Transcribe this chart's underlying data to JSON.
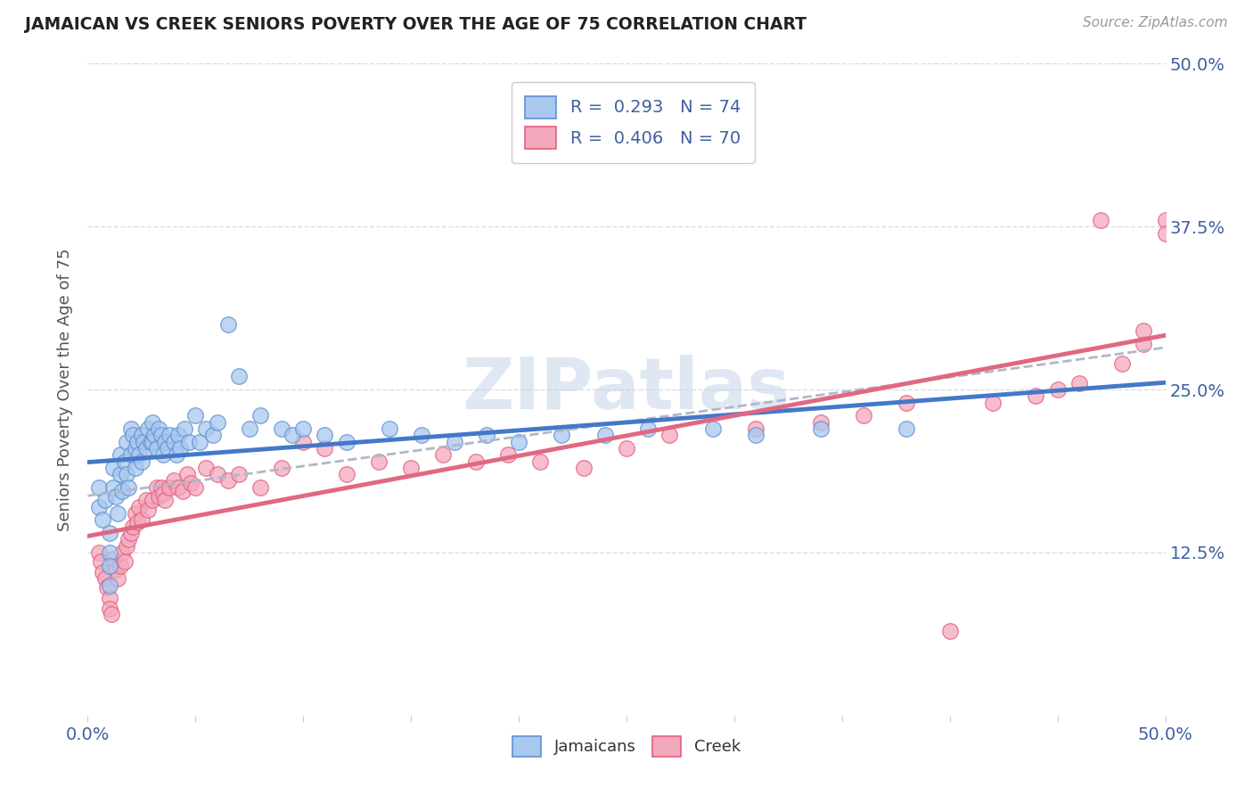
{
  "title": "JAMAICAN VS CREEK SENIORS POVERTY OVER THE AGE OF 75 CORRELATION CHART",
  "source_text": "Source: ZipAtlas.com",
  "ylabel": "Seniors Poverty Over the Age of 75",
  "xlim": [
    0.0,
    0.5
  ],
  "ylim": [
    0.0,
    0.5
  ],
  "ytick_labels_right": [
    "12.5%",
    "25.0%",
    "37.5%",
    "50.0%"
  ],
  "ytick_vals_right": [
    0.125,
    0.25,
    0.375,
    0.5
  ],
  "watermark": "ZIPatlas",
  "color_jamaican": "#A8C8F0",
  "color_creek": "#F4A8BC",
  "edge_color_jamaican": "#6090D0",
  "edge_color_creek": "#E06080",
  "line_color_jamaican": "#4478C8",
  "line_color_creek": "#E06880",
  "line_color_dashed": "#B0B8C8",
  "bg_color": "#FFFFFF",
  "grid_color": "#D8DCE8",
  "legend_text_color": "#4060A0",
  "jamaican_x": [
    0.005,
    0.005,
    0.007,
    0.008,
    0.01,
    0.01,
    0.01,
    0.01,
    0.012,
    0.012,
    0.013,
    0.014,
    0.015,
    0.015,
    0.016,
    0.017,
    0.018,
    0.018,
    0.019,
    0.02,
    0.02,
    0.021,
    0.022,
    0.022,
    0.023,
    0.024,
    0.025,
    0.025,
    0.026,
    0.027,
    0.028,
    0.029,
    0.03,
    0.03,
    0.031,
    0.032,
    0.033,
    0.034,
    0.035,
    0.036,
    0.037,
    0.038,
    0.04,
    0.041,
    0.042,
    0.043,
    0.045,
    0.047,
    0.05,
    0.052,
    0.055,
    0.058,
    0.06,
    0.065,
    0.07,
    0.075,
    0.08,
    0.09,
    0.095,
    0.1,
    0.11,
    0.12,
    0.14,
    0.155,
    0.17,
    0.185,
    0.2,
    0.22,
    0.24,
    0.26,
    0.29,
    0.31,
    0.34,
    0.38
  ],
  "jamaican_y": [
    0.175,
    0.16,
    0.15,
    0.165,
    0.14,
    0.125,
    0.115,
    0.1,
    0.19,
    0.175,
    0.168,
    0.155,
    0.2,
    0.185,
    0.172,
    0.195,
    0.21,
    0.185,
    0.175,
    0.22,
    0.2,
    0.215,
    0.205,
    0.19,
    0.21,
    0.2,
    0.215,
    0.195,
    0.21,
    0.205,
    0.22,
    0.21,
    0.225,
    0.21,
    0.215,
    0.205,
    0.22,
    0.215,
    0.2,
    0.21,
    0.205,
    0.215,
    0.21,
    0.2,
    0.215,
    0.205,
    0.22,
    0.21,
    0.23,
    0.21,
    0.22,
    0.215,
    0.225,
    0.3,
    0.26,
    0.22,
    0.23,
    0.22,
    0.215,
    0.22,
    0.215,
    0.21,
    0.22,
    0.215,
    0.21,
    0.215,
    0.21,
    0.215,
    0.215,
    0.22,
    0.22,
    0.215,
    0.22,
    0.22
  ],
  "creek_x": [
    0.005,
    0.006,
    0.007,
    0.008,
    0.009,
    0.01,
    0.01,
    0.011,
    0.012,
    0.013,
    0.014,
    0.015,
    0.016,
    0.017,
    0.018,
    0.019,
    0.02,
    0.021,
    0.022,
    0.023,
    0.024,
    0.025,
    0.027,
    0.028,
    0.03,
    0.032,
    0.033,
    0.034,
    0.035,
    0.036,
    0.038,
    0.04,
    0.042,
    0.044,
    0.046,
    0.048,
    0.05,
    0.055,
    0.06,
    0.065,
    0.07,
    0.08,
    0.09,
    0.1,
    0.11,
    0.12,
    0.135,
    0.15,
    0.165,
    0.18,
    0.195,
    0.21,
    0.23,
    0.25,
    0.27,
    0.31,
    0.34,
    0.36,
    0.38,
    0.4,
    0.42,
    0.44,
    0.45,
    0.46,
    0.47,
    0.48,
    0.49,
    0.49,
    0.5,
    0.5
  ],
  "creek_y": [
    0.125,
    0.118,
    0.11,
    0.105,
    0.098,
    0.09,
    0.082,
    0.078,
    0.12,
    0.112,
    0.105,
    0.115,
    0.125,
    0.118,
    0.13,
    0.135,
    0.14,
    0.145,
    0.155,
    0.148,
    0.16,
    0.15,
    0.165,
    0.158,
    0.165,
    0.175,
    0.168,
    0.175,
    0.17,
    0.165,
    0.175,
    0.18,
    0.175,
    0.172,
    0.185,
    0.178,
    0.175,
    0.19,
    0.185,
    0.18,
    0.185,
    0.175,
    0.19,
    0.21,
    0.205,
    0.185,
    0.195,
    0.19,
    0.2,
    0.195,
    0.2,
    0.195,
    0.19,
    0.205,
    0.215,
    0.22,
    0.225,
    0.23,
    0.24,
    0.065,
    0.24,
    0.245,
    0.25,
    0.255,
    0.38,
    0.27,
    0.285,
    0.295,
    0.38,
    0.37
  ]
}
